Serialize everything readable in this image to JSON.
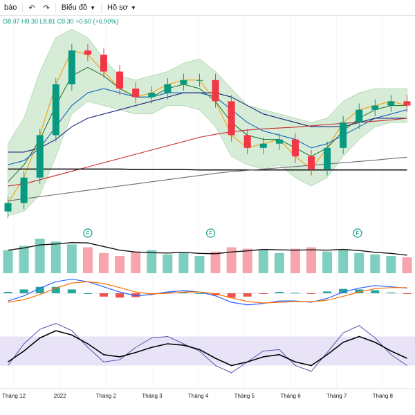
{
  "toolbar": {
    "alerts_label": "báo",
    "undo_icon": "undo-icon",
    "redo_icon": "redo-icon",
    "chart_type_label": "Biểu đồ",
    "profile_label": "Hồ sơ",
    "chevron_icon": "chevron-down-icon"
  },
  "ohlc": {
    "open": "O8.87",
    "high": "H9.30",
    "low": "L8.81",
    "close": "C9.30",
    "change": "+0.60 (+6.90%)"
  },
  "colors": {
    "up": "#089981",
    "down": "#f23645",
    "bb_fill": "#c8e6c9",
    "rsi_band": "#e8e3f7",
    "grid": "#f0f3fa"
  },
  "event_marker_label": "F",
  "chart_data": {
    "type": "line",
    "x_ticks": [
      "Tháng 12",
      "2022",
      "Tháng 2",
      "Tháng 3",
      "Tháng 4",
      "Tháng 5",
      "Tháng 6",
      "Tháng 7",
      "Tháng 8"
    ],
    "series": [
      {
        "values": [
          7.0,
          7.6,
          8.6,
          9.8,
          10.6,
          10.5,
          10.1,
          9.7,
          9.5,
          9.6,
          9.8,
          9.9,
          9.9,
          9.4,
          8.6,
          8.3,
          8.4,
          8.5,
          8.1,
          7.8,
          8.3,
          8.9,
          9.2,
          9.3,
          9.4,
          9.3
        ]
      },
      {
        "values": [
          7.5,
          7.9,
          8.5,
          9.3,
          10.0,
          10.2,
          10.0,
          9.7,
          9.5,
          9.5,
          9.7,
          9.8,
          9.7,
          9.4,
          8.9,
          8.6,
          8.5,
          8.5,
          8.3,
          8.1,
          8.3,
          8.7,
          9.0,
          9.2,
          9.3,
          9.3
        ]
      },
      {
        "values": [
          7.9,
          8.0,
          8.3,
          8.8,
          9.3,
          9.6,
          9.7,
          9.6,
          9.5,
          9.5,
          9.6,
          9.6,
          9.6,
          9.5,
          9.2,
          8.9,
          8.7,
          8.6,
          8.5,
          8.3,
          8.4,
          8.6,
          8.8,
          9.0,
          9.1,
          9.2
        ]
      },
      {
        "values": [
          8.2,
          8.2,
          8.3,
          8.5,
          8.8,
          9.0,
          9.1,
          9.2,
          9.3,
          9.4,
          9.5,
          9.6,
          9.6,
          9.6,
          9.5,
          9.3,
          9.1,
          9.0,
          8.9,
          8.8,
          8.8,
          8.8,
          8.9,
          9.0,
          9.0,
          9.0
        ]
      },
      {
        "values": [
          7.4,
          7.45,
          7.55,
          7.65,
          7.75,
          7.85,
          7.95,
          8.05,
          8.15,
          8.25,
          8.35,
          8.45,
          8.55,
          8.62,
          8.68,
          8.72,
          8.75,
          8.77,
          8.79,
          8.82,
          8.85,
          8.88,
          8.9,
          8.93,
          8.96,
          9.0
        ]
      },
      {
        "values": [
          7.8,
          7.8,
          7.8,
          7.8,
          7.8,
          7.8,
          7.8,
          7.8,
          7.79,
          7.79,
          7.79,
          7.79,
          7.78,
          7.78,
          7.78,
          7.78,
          7.78,
          7.78,
          7.78,
          7.78,
          7.78,
          7.78,
          7.78,
          7.78,
          7.78,
          7.78
        ]
      },
      {
        "values": [
          7.05,
          7.1,
          7.15,
          7.2,
          7.25,
          7.3,
          7.35,
          7.4,
          7.45,
          7.5,
          7.55,
          7.6,
          7.65,
          7.7,
          7.74,
          7.77,
          7.8,
          7.83,
          7.86,
          7.89,
          7.92,
          7.95,
          7.98,
          8.01,
          8.05,
          8.08
        ]
      }
    ],
    "bollinger": {
      "upper": [
        8.4,
        9.0,
        10.1,
        10.9,
        11.1,
        10.9,
        10.4,
        10.0,
        9.9,
        10.0,
        10.1,
        10.3,
        10.4,
        10.1,
        9.7,
        9.3,
        9.2,
        9.1,
        9.0,
        8.9,
        9.0,
        9.4,
        9.6,
        9.7,
        9.7,
        9.7
      ],
      "lower": [
        6.7,
        6.8,
        7.2,
        8.1,
        9.1,
        9.4,
        9.3,
        9.2,
        9.1,
        9.1,
        9.3,
        9.3,
        9.2,
        8.8,
        8.1,
        7.9,
        7.8,
        7.9,
        7.6,
        7.4,
        7.6,
        8.1,
        8.5,
        8.8,
        8.9,
        8.9
      ]
    },
    "volume": [
      80,
      95,
      120,
      110,
      100,
      90,
      70,
      60,
      75,
      80,
      65,
      70,
      60,
      75,
      90,
      85,
      80,
      70,
      85,
      90,
      75,
      80,
      70,
      65,
      60,
      55
    ],
    "macd": {
      "macd": [
        -0.3,
        -0.1,
        0.2,
        0.45,
        0.55,
        0.45,
        0.25,
        0.05,
        -0.1,
        -0.05,
        0.05,
        0.1,
        0.05,
        -0.1,
        -0.35,
        -0.45,
        -0.4,
        -0.3,
        -0.3,
        -0.35,
        -0.2,
        0.05,
        0.2,
        0.3,
        0.25,
        0.2
      ],
      "signal": [
        -0.35,
        -0.25,
        -0.05,
        0.2,
        0.4,
        0.45,
        0.38,
        0.22,
        0.05,
        -0.03,
        0.0,
        0.05,
        0.05,
        -0.02,
        -0.18,
        -0.32,
        -0.38,
        -0.35,
        -0.32,
        -0.33,
        -0.27,
        -0.12,
        0.05,
        0.18,
        0.22,
        0.22
      ]
    },
    "rsi": {
      "rsi": [
        35,
        50,
        68,
        78,
        72,
        60,
        45,
        42,
        48,
        55,
        60,
        58,
        52,
        40,
        30,
        35,
        42,
        45,
        35,
        30,
        45,
        62,
        70,
        62,
        50,
        40
      ],
      "stoch": [
        30,
        60,
        80,
        88,
        78,
        55,
        35,
        38,
        55,
        68,
        70,
        60,
        50,
        30,
        20,
        35,
        50,
        52,
        30,
        22,
        48,
        75,
        85,
        68,
        45,
        30
      ],
      "band": [
        30,
        70
      ]
    },
    "event_marker_positions": [
      5.5,
      13.2,
      22.4
    ]
  }
}
